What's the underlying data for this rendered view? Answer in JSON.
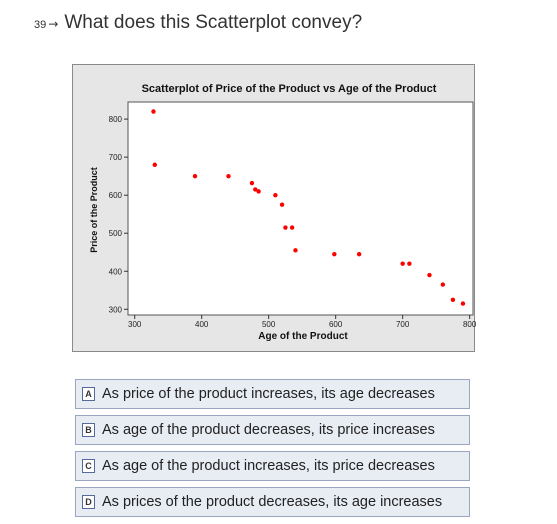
{
  "question": {
    "number": "39",
    "arrow_icon": "right-arrow",
    "text": "What does this Scatterplot convey?"
  },
  "chart_data": {
    "type": "scatter",
    "title": "Scatterplot of Price of the Product vs Age of the Product",
    "xlabel": "Age of the Product",
    "ylabel": "Price of the Product",
    "xlim": [
      290,
      805
    ],
    "ylim": [
      285,
      845
    ],
    "xticks": [
      300,
      400,
      500,
      600,
      700,
      800
    ],
    "yticks": [
      300,
      400,
      500,
      600,
      700,
      800
    ],
    "grid": false,
    "point_color": "#ff0000",
    "x": [
      328,
      330,
      390,
      440,
      475,
      480,
      485,
      510,
      520,
      525,
      535,
      540,
      598,
      635,
      700,
      710,
      740,
      760,
      775,
      790
    ],
    "y": [
      820,
      680,
      650,
      650,
      632,
      615,
      610,
      600,
      575,
      515,
      515,
      455,
      445,
      445,
      420,
      420,
      390,
      365,
      325,
      315
    ]
  },
  "choices": [
    {
      "letter": "A",
      "text": "As price of the product increases, its age decreases"
    },
    {
      "letter": "B",
      "text": "As age of the product decreases, its price increases"
    },
    {
      "letter": "C",
      "text": "As age of the product increases, its price decreases"
    },
    {
      "letter": "D",
      "text": "As prices of the product decreases, its age increases"
    }
  ]
}
